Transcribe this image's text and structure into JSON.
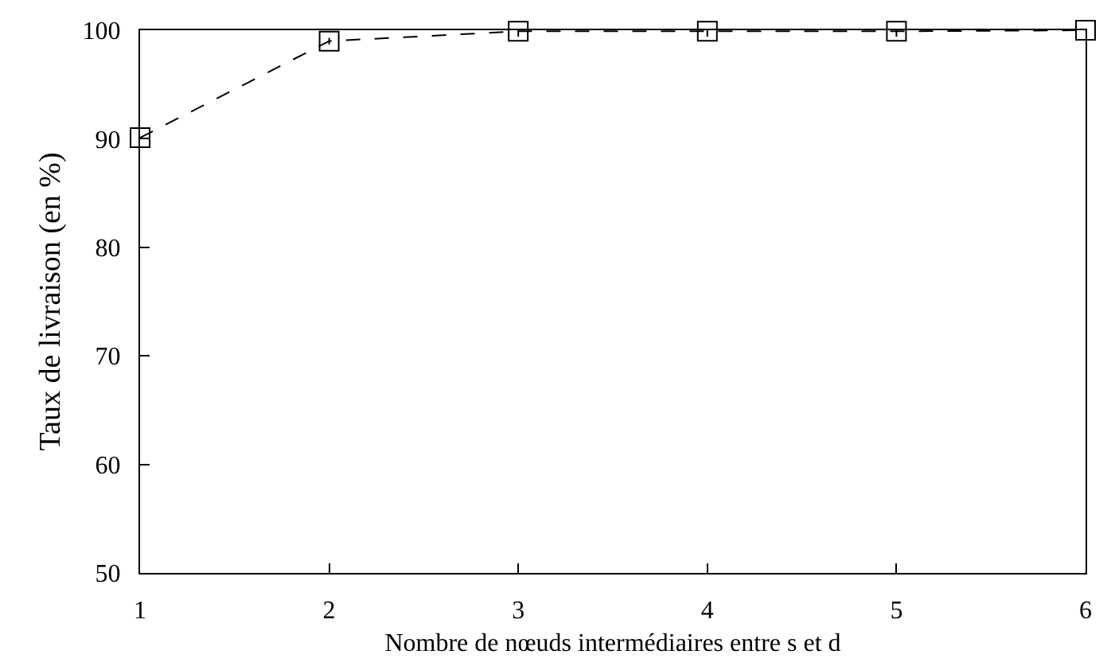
{
  "chart_data": {
    "type": "line",
    "xlabel": "Nombre de nœuds intermédiaires entre s et d",
    "ylabel": "Taux de livraison (en %)",
    "x": [
      1,
      2,
      3,
      4,
      5,
      6
    ],
    "series": [
      {
        "color": "#000000",
        "values": [
          90.1,
          99,
          99.9,
          99.9,
          99.9,
          100
        ],
        "errors": [
          null,
          0.3,
          0.5,
          0.5,
          0.5,
          null
        ]
      }
    ],
    "xlim": [
      1,
      6
    ],
    "xticks": [
      1,
      2,
      3,
      4,
      5,
      6
    ],
    "ylim": [
      50,
      100
    ],
    "yticks": [
      50,
      60,
      70,
      80,
      90,
      100
    ],
    "grid": false,
    "marker": "square",
    "line_style": "dashed"
  }
}
